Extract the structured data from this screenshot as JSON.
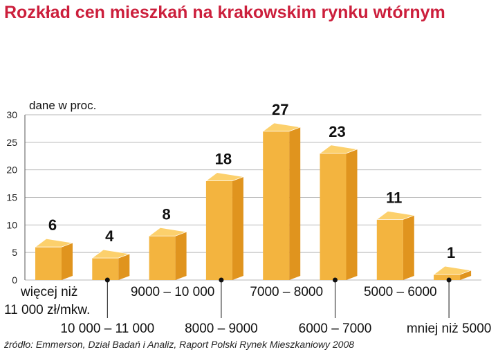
{
  "chart_data": {
    "type": "bar",
    "title": "Rozkład cen mieszkań na krakowskim rynku wtórnym",
    "ylabel": "dane w proc.",
    "ylim": [
      0,
      30
    ],
    "yticks": [
      0,
      5,
      10,
      15,
      20,
      25,
      30
    ],
    "categories": [
      [
        "więcej niż",
        "11 000 zł/mkw."
      ],
      [
        "10 000 – 11 000"
      ],
      [
        "9000 – 10 000"
      ],
      [
        "8000 – 9000"
      ],
      [
        "7000 – 8000"
      ],
      [
        "6000 – 7000"
      ],
      [
        "5000 – 6000"
      ],
      [
        "mniej niż 5000"
      ]
    ],
    "values": [
      6,
      4,
      8,
      18,
      27,
      23,
      11,
      1
    ],
    "label_rows": [
      "upper",
      "lower",
      "upper",
      "lower",
      "upper",
      "lower",
      "upper",
      "lower"
    ],
    "source": "źródło: Emmerson, Dział Badań i Analiz, Raport Polski Rynek Mieszkaniowy 2008",
    "colors": {
      "title": "#cc1f3c",
      "front": "#f3b43f",
      "side": "#e0941e",
      "top": "#fcd06c",
      "grid": "#b7b7b7"
    }
  }
}
